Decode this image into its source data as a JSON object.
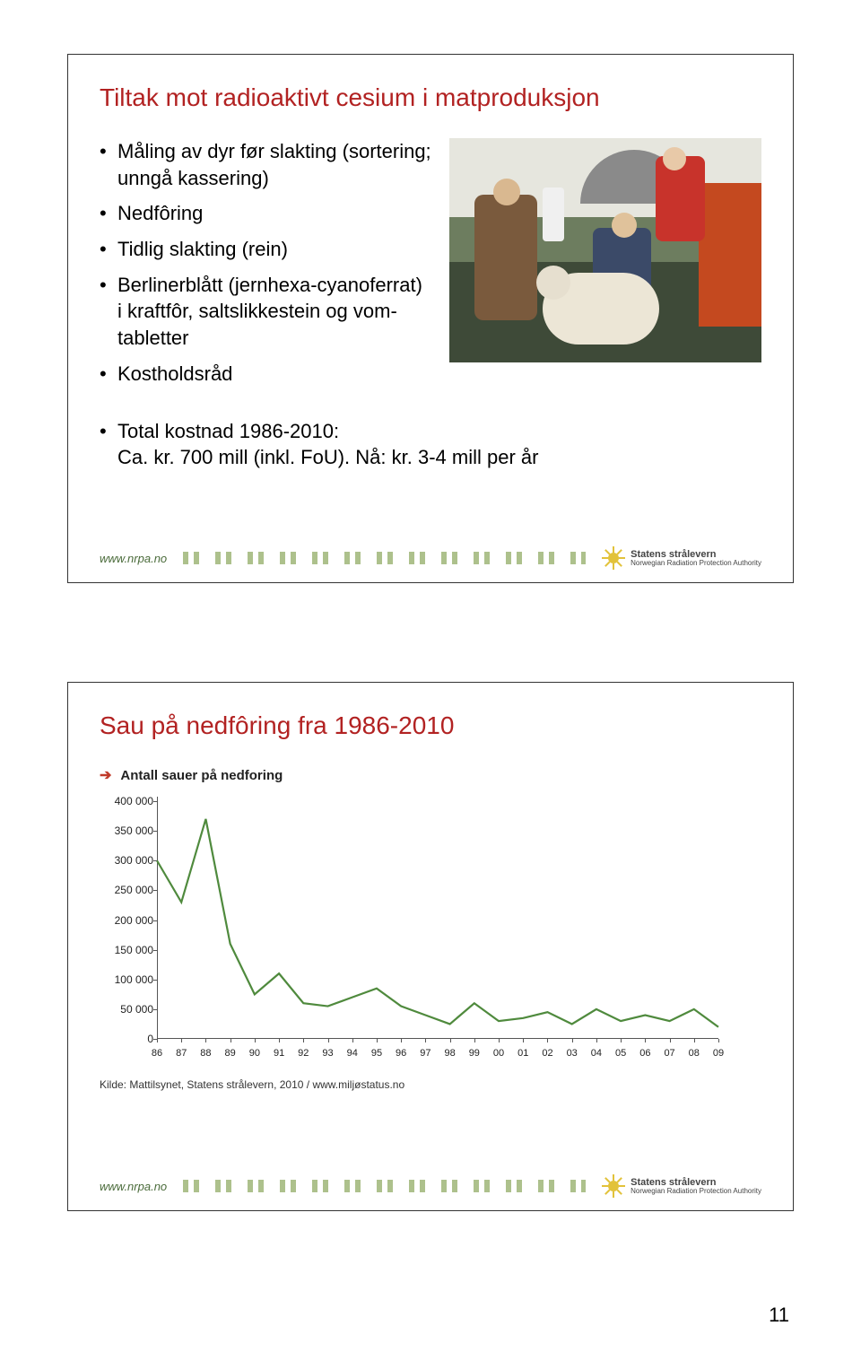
{
  "slide1": {
    "title": "Tiltak mot radioaktivt cesium i matproduksjon",
    "bullets": [
      "Måling av dyr før slakting (sortering; unngå kassering)",
      "Nedfôring",
      "Tidlig slakting (rein)",
      "Berlinerblått (jernhexa-cyanoferrat) i kraftfôr, saltslikkestein og vom-tabletter",
      "Kostholdsråd"
    ],
    "cost_line1": "Total kostnad 1986-2010:",
    "cost_line2": "Ca. kr. 700 mill (inkl. FoU). Nå: kr. 3-4 mill per år"
  },
  "slide2": {
    "title": "Sau på nedfôring fra 1986-2010",
    "chart": {
      "legend_label": "Antall sauer på nedforing",
      "ylim": [
        0,
        400000
      ],
      "ytick_step": 50000,
      "ytick_labels": [
        "0",
        "50 000",
        "100 000",
        "150 000",
        "200 000",
        "250 000",
        "300 000",
        "350 000",
        "400 000"
      ],
      "xlabels": [
        "86",
        "87",
        "88",
        "89",
        "90",
        "91",
        "92",
        "93",
        "94",
        "95",
        "96",
        "97",
        "98",
        "99",
        "00",
        "01",
        "02",
        "03",
        "04",
        "05",
        "06",
        "07",
        "08",
        "09"
      ],
      "values": [
        300000,
        230000,
        370000,
        160000,
        75000,
        110000,
        60000,
        55000,
        70000,
        85000,
        55000,
        40000,
        25000,
        60000,
        30000,
        35000,
        45000,
        25000,
        50000,
        30000,
        40000,
        30000,
        50000,
        20000
      ],
      "line_color": "#4f8a3d",
      "axis_color": "#555555",
      "label_fontsize": 12
    },
    "source": "Kilde: Mattilsynet, Statens strålevern, 2010 / www.miljøstatus.no"
  },
  "footer": {
    "url": "www.nrpa.no",
    "logo_text1": "Statens strålevern",
    "logo_text2": "Norwegian Radiation Protection Authority"
  },
  "page_number": "11"
}
